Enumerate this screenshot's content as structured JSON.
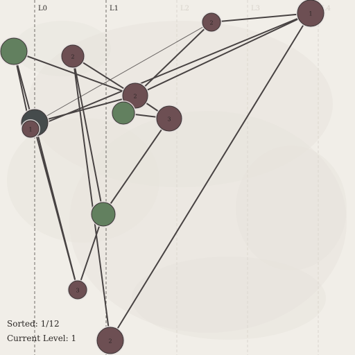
{
  "levels": [
    {
      "label": "L0",
      "dim": false
    },
    {
      "label": "L1",
      "dim": false
    },
    {
      "label": "L2",
      "dim": true
    },
    {
      "label": "L3",
      "dim": true
    },
    {
      "label": "L4",
      "dim": true
    }
  ],
  "nodes": [
    {
      "id": "a",
      "label": "",
      "kind": "green"
    },
    {
      "id": "b",
      "label": "2",
      "kind": "red"
    },
    {
      "id": "c",
      "label": "2",
      "kind": "red"
    },
    {
      "id": "d",
      "label": "1",
      "kind": "red"
    },
    {
      "id": "e",
      "label": "2",
      "kind": "red"
    },
    {
      "id": "f",
      "label": "",
      "kind": "green"
    },
    {
      "id": "g",
      "label": "3",
      "kind": "red"
    },
    {
      "id": "h",
      "label": "",
      "kind": "dark"
    },
    {
      "id": "i",
      "label": "1",
      "kind": "red"
    },
    {
      "id": "j",
      "label": "",
      "kind": "green"
    },
    {
      "id": "k",
      "label": "3",
      "kind": "red"
    },
    {
      "id": "l",
      "label": "2",
      "kind": "red"
    }
  ],
  "edges": [
    [
      "a",
      "e"
    ],
    [
      "a",
      "i"
    ],
    [
      "a",
      "k"
    ],
    [
      "b",
      "e"
    ],
    [
      "b",
      "l"
    ],
    [
      "b",
      "j"
    ],
    [
      "c",
      "d"
    ],
    [
      "c",
      "e"
    ],
    [
      "d",
      "e"
    ],
    [
      "d",
      "l"
    ],
    [
      "d",
      "i"
    ],
    [
      "e",
      "g"
    ],
    [
      "e",
      "h"
    ],
    [
      "f",
      "g"
    ],
    [
      "g",
      "j"
    ],
    [
      "h",
      "k"
    ],
    [
      "j",
      "k"
    ]
  ],
  "faint_edges": [
    [
      "h",
      "c"
    ]
  ],
  "colors": {
    "red": "#6d4f53",
    "green": "#62805f",
    "dark": "#454b4c",
    "edge": "#474242",
    "ring": "#e4dede"
  },
  "hud": {
    "sorted": "Sorted: 1/12",
    "level": "Current Level: 1"
  }
}
